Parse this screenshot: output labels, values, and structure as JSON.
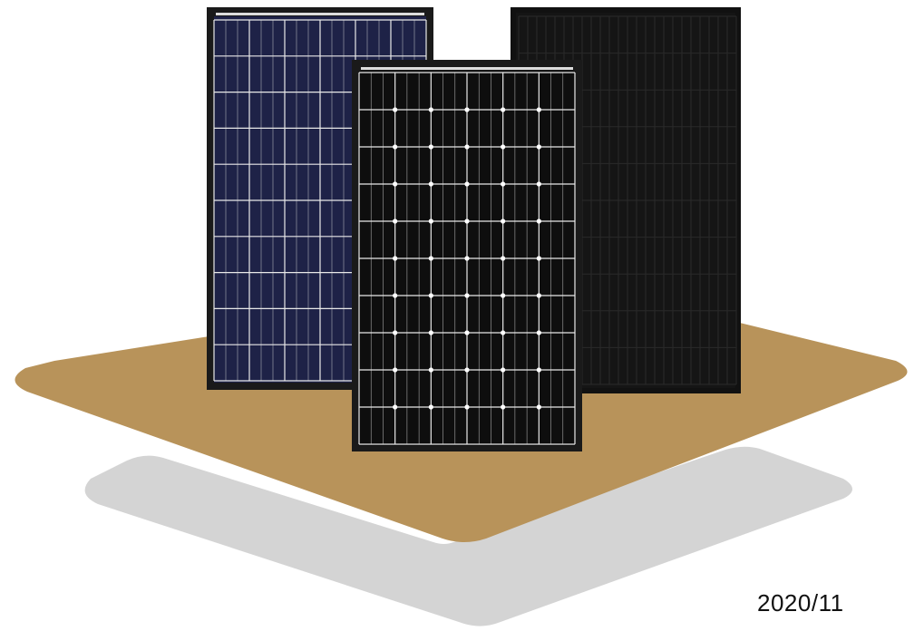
{
  "date_label": "2020/11",
  "panels": [
    {
      "name": "polycrystalline-panel",
      "cell_color": "#1e2247"
    },
    {
      "name": "monocrystalline-panel",
      "cell_color": "#0e0e0e"
    },
    {
      "name": "all-black-panel",
      "cell_color": "#151515"
    }
  ],
  "colors": {
    "platform": "#b8935a",
    "platform_shadow": "#d4d4d4",
    "frame": "#1a1a1a",
    "grid_line": "#e8e8e8"
  }
}
